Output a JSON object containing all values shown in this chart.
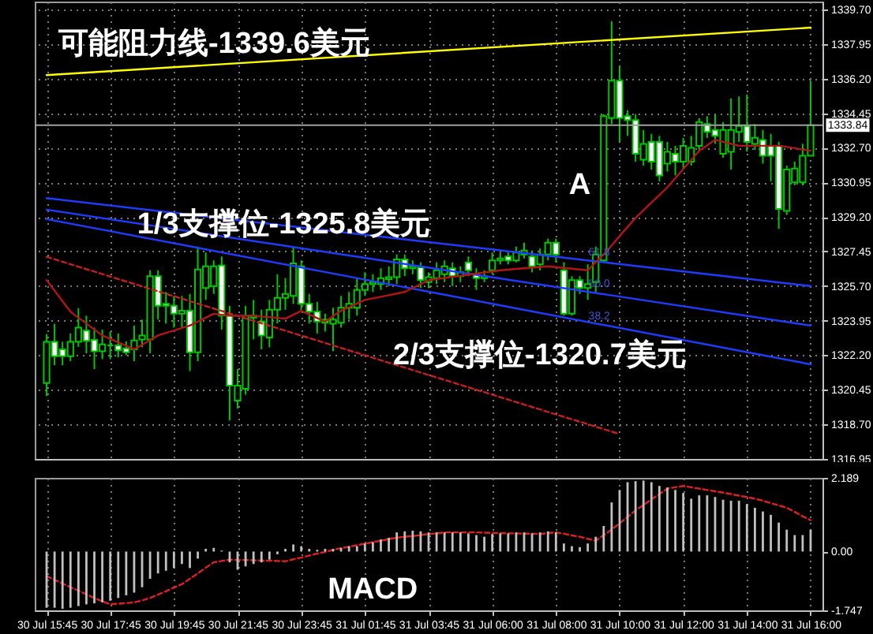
{
  "chart_data": [
    {
      "type": "candlestick",
      "categories": [
        "30 Jul 15:45",
        null,
        null,
        null,
        null,
        null,
        null,
        null,
        "30 Jul 17:45",
        null,
        null,
        null,
        null,
        null,
        null,
        null,
        "30 Jul 19:45",
        null,
        null,
        null,
        null,
        null,
        null,
        null,
        "30 Jul 21:45",
        null,
        null,
        null,
        null,
        null,
        null,
        null,
        "30 Jul 23:45",
        null,
        null,
        null,
        null,
        null,
        null,
        null,
        "31 Jul 01:45",
        null,
        null,
        null,
        null,
        null,
        null,
        null,
        "31 Jul 03:45",
        null,
        null,
        null,
        null,
        null,
        null,
        null,
        "31 Jul 06:00",
        null,
        null,
        null,
        null,
        null,
        null,
        null,
        "31 Jul 08:00",
        null,
        null,
        null,
        null,
        null,
        null,
        null,
        "31 Jul 10:00",
        null,
        null,
        null,
        null,
        null,
        null,
        null,
        "31 Jul 12:00",
        null,
        null,
        null,
        null,
        null,
        null,
        null,
        "31 Jul 14:00",
        null,
        null,
        null,
        null,
        null,
        null,
        null,
        "31 Jul 16:00"
      ],
      "ohlc": [
        [
          1320.79,
          1323.27,
          1320.14,
          1322.88
        ],
        [
          1322.88,
          1323.79,
          1321.7,
          1322.15
        ],
        [
          1322.5,
          1322.88,
          1321.7,
          1322.15
        ],
        [
          1322.15,
          1323.3,
          1321.9,
          1322.88
        ],
        [
          1322.88,
          1324.58,
          1322.62,
          1323.6
        ],
        [
          1323.45,
          1324.2,
          1322.3,
          1322.93
        ],
        [
          1322.98,
          1323.6,
          1321.5,
          1322.4
        ],
        [
          1322.4,
          1323.5,
          1322.0,
          1322.75
        ],
        [
          1322.7,
          1323.4,
          1322.0,
          1322.7
        ],
        [
          1322.7,
          1323.3,
          1322.1,
          1322.45
        ],
        [
          1322.55,
          1322.9,
          1322.2,
          1322.35
        ],
        [
          1322.5,
          1323.7,
          1321.9,
          1322.95
        ],
        [
          1323.0,
          1324.0,
          1322.6,
          1323.2
        ],
        [
          1323.0,
          1326.5,
          1322.3,
          1326.2
        ],
        [
          1326.2,
          1326.5,
          1324.0,
          1324.7
        ],
        [
          1324.8,
          1325.4,
          1323.8,
          1324.7
        ],
        [
          1324.7,
          1325.2,
          1323.6,
          1324.3
        ],
        [
          1324.3,
          1325.2,
          1323.6,
          1324.45
        ],
        [
          1324.45,
          1325.3,
          1321.4,
          1322.35
        ],
        [
          1322.35,
          1327.7,
          1321.9,
          1326.54
        ],
        [
          1325.6,
          1327.4,
          1325.0,
          1326.7
        ],
        [
          1325.7,
          1327.0,
          1325.3,
          1326.7
        ],
        [
          1326.75,
          1327.2,
          1323.5,
          1324.2
        ],
        [
          1324.2,
          1324.7,
          1318.9,
          1320.66
        ],
        [
          1319.9,
          1321.5,
          1319.5,
          1320.66
        ],
        [
          1320.5,
          1324.7,
          1320.2,
          1324.2
        ],
        [
          1324.1,
          1325.0,
          1323.0,
          1324.2
        ],
        [
          1323.9,
          1324.5,
          1322.5,
          1323.2
        ],
        [
          1323.1,
          1325.0,
          1322.6,
          1324.5
        ],
        [
          1324.5,
          1326.3,
          1323.8,
          1325.1
        ],
        [
          1325.1,
          1326.1,
          1324.5,
          1325.3
        ],
        [
          1325.2,
          1327.7,
          1324.8,
          1326.85
        ],
        [
          1326.7,
          1327.0,
          1324.5,
          1324.8
        ],
        [
          1324.8,
          1325.3,
          1323.8,
          1324.4
        ],
        [
          1324.4,
          1324.9,
          1323.3,
          1323.9
        ],
        [
          1324.0,
          1324.3,
          1323.4,
          1323.85
        ],
        [
          1323.8,
          1324.6,
          1322.4,
          1324.0
        ],
        [
          1323.85,
          1325.2,
          1323.6,
          1324.6
        ],
        [
          1324.6,
          1325.4,
          1324.0,
          1324.8
        ],
        [
          1324.6,
          1326.1,
          1324.2,
          1325.5
        ],
        [
          1325.5,
          1326.4,
          1325.2,
          1325.8
        ],
        [
          1325.8,
          1326.3,
          1325.4,
          1325.9
        ],
        [
          1325.8,
          1326.6,
          1325.5,
          1326.1
        ],
        [
          1326.05,
          1326.7,
          1325.7,
          1326.15
        ],
        [
          1326.15,
          1327.3,
          1325.8,
          1327.05
        ],
        [
          1327.05,
          1327.3,
          1326.2,
          1326.6
        ],
        [
          1326.6,
          1327.0,
          1326.3,
          1326.7
        ],
        [
          1326.65,
          1326.9,
          1325.6,
          1326.0
        ],
        [
          1325.9,
          1326.4,
          1325.6,
          1326.15
        ],
        [
          1326.1,
          1326.9,
          1325.8,
          1326.5
        ],
        [
          1326.3,
          1327.0,
          1325.9,
          1326.7
        ],
        [
          1326.6,
          1326.9,
          1325.7,
          1326.2
        ],
        [
          1326.2,
          1326.7,
          1325.9,
          1326.4
        ],
        [
          1326.9,
          1327.2,
          1326.2,
          1326.5
        ],
        [
          1326.3,
          1326.6,
          1325.5,
          1326.1
        ],
        [
          1326.1,
          1326.5,
          1325.9,
          1326.2
        ],
        [
          1326.5,
          1327.4,
          1326.3,
          1327.0
        ],
        [
          1327.0,
          1327.4,
          1326.8,
          1327.1
        ],
        [
          1327.2,
          1327.4,
          1326.8,
          1327.0
        ],
        [
          1327.0,
          1327.7,
          1326.9,
          1327.4
        ],
        [
          1327.3,
          1327.9,
          1327.1,
          1327.5
        ],
        [
          1327.2,
          1327.5,
          1326.4,
          1326.7
        ],
        [
          1326.8,
          1327.6,
          1326.5,
          1327.3
        ],
        [
          1327.3,
          1328.1,
          1327.0,
          1327.9
        ],
        [
          1327.9,
          1328.1,
          1326.9,
          1327.3
        ],
        [
          1326.5,
          1326.9,
          1324.2,
          1324.3
        ],
        [
          1324.3,
          1326.2,
          1324.2,
          1326.0
        ],
        [
          1326.0,
          1326.2,
          1325.3,
          1325.6
        ],
        [
          1325.6,
          1326.8,
          1325.0,
          1325.8
        ],
        [
          1325.9,
          1327.7,
          1325.4,
          1327.3
        ],
        [
          1327.0,
          1334.4,
          1326.9,
          1334.3
        ],
        [
          1334.2,
          1339.1,
          1333.9,
          1336.1
        ],
        [
          1336.1,
          1336.8,
          1333.0,
          1334.2
        ],
        [
          1334.3,
          1334.6,
          1333.3,
          1334.1
        ],
        [
          1334.1,
          1334.4,
          1332.0,
          1332.4
        ],
        [
          1332.1,
          1333.6,
          1331.8,
          1332.9
        ],
        [
          1333.0,
          1333.4,
          1331.6,
          1332.0
        ],
        [
          1333.0,
          1333.3,
          1331.0,
          1331.3
        ],
        [
          1331.9,
          1333.0,
          1331.5,
          1332.5
        ],
        [
          1332.4,
          1332.8,
          1331.3,
          1332.0
        ],
        [
          1332.0,
          1333.2,
          1331.6,
          1332.8
        ],
        [
          1332.0,
          1333.3,
          1331.8,
          1332.7
        ],
        [
          1332.8,
          1334.2,
          1332.5,
          1334.0
        ],
        [
          1333.9,
          1334.3,
          1333.2,
          1333.5
        ],
        [
          1333.6,
          1334.4,
          1332.9,
          1333.3
        ],
        [
          1332.4,
          1334.0,
          1332.2,
          1333.6
        ],
        [
          1332.5,
          1335.2,
          1331.6,
          1333.6
        ],
        [
          1333.5,
          1335.3,
          1333.0,
          1333.8
        ],
        [
          1333.8,
          1335.4,
          1332.5,
          1333.0
        ],
        [
          1332.9,
          1333.9,
          1332.6,
          1333.2
        ],
        [
          1333.1,
          1333.6,
          1331.9,
          1332.3
        ],
        [
          1332.8,
          1333.4,
          1331.0,
          1332.3
        ],
        [
          1332.8,
          1333.0,
          1328.6,
          1329.6
        ],
        [
          1329.5,
          1331.8,
          1329.3,
          1331.6
        ],
        [
          1330.95,
          1332.0,
          1330.8,
          1331.65
        ],
        [
          1330.95,
          1332.9,
          1330.8,
          1332.3
        ],
        [
          1332.3,
          1336.1,
          1332.3,
          1333.84
        ]
      ],
      "series": [
        {
          "type": "line",
          "color": "#ffff00",
          "x": [
            "30 Jul 15:45",
            "31 Jul 16:00"
          ],
          "values": [
            1336.38,
            1338.78
          ]
        },
        {
          "type": "line",
          "color": "#1e3cff",
          "x": [
            "30 Jul 15:45",
            "31 Jul 16:00"
          ],
          "values": [
            1330.15,
            1325.7
          ]
        },
        {
          "type": "line",
          "color": "#1e3cff",
          "x": [
            "30 Jul 15:45",
            "31 Jul 16:00"
          ],
          "values": [
            1329.57,
            1323.7
          ]
        },
        {
          "type": "line",
          "color": "#1e3cff",
          "x": [
            "30 Jul 15:45",
            "31 Jul 16:00"
          ],
          "values": [
            1329.09,
            1321.74
          ]
        },
        {
          "type": "line",
          "color": "#c81e1e",
          "line_style": "dashed",
          "x": [
            "30 Jul 15:45",
            "31 Jul 10:00"
          ],
          "values": [
            1327.18,
            1318.21
          ]
        },
        {
          "type": "line",
          "color": "#b41414",
          "values": [
            1326.0,
            1325.47,
            1324.93,
            1324.4,
            1324.1,
            1323.8,
            1323.5,
            1323.2,
            1323.03,
            1322.85,
            1322.68,
            1322.5,
            1322.73,
            1322.97,
            1323.2,
            1323.33,
            1323.45,
            1323.58,
            1323.7,
            1323.9,
            1324.1,
            1324.3,
            1324.25,
            1324.2,
            1324.2,
            1324.2,
            1324.2,
            1324.16,
            1324.13,
            1324.09,
            1324.05,
            1324.25,
            1324.45,
            1324.27,
            1324.08,
            1323.9,
            1324.18,
            1324.45,
            1324.63,
            1324.82,
            1325.0,
            1325.08,
            1325.16,
            1325.24,
            1325.32,
            1325.4,
            1325.6,
            1325.8,
            1326.0,
            1326.06,
            1326.11,
            1326.17,
            1326.22,
            1326.28,
            1326.33,
            1326.39,
            1326.44,
            1326.5,
            1326.53,
            1326.57,
            1326.6,
            1326.63,
            1326.67,
            1326.7,
            1326.66,
            1326.62,
            1326.58,
            1326.54,
            1326.5,
            1326.9,
            1327.3,
            1327.76,
            1328.23,
            1328.69,
            1329.15,
            1329.54,
            1329.93,
            1330.31,
            1330.7,
            1331.16,
            1331.63,
            1332.09,
            1332.55,
            1332.83,
            1333.1,
            1333.0,
            1332.9,
            1332.8,
            1332.8,
            1332.8,
            1332.8,
            1332.8,
            1332.8,
            1332.74,
            1332.68,
            1332.61,
            1332.55
          ]
        }
      ],
      "ylim": [
        1316.95,
        1340.1
      ],
      "yticks": [
        {
          "value": 1316.95,
          "label": "1316.95"
        },
        {
          "value": 1318.7,
          "label": "1318.70"
        },
        {
          "value": 1320.45,
          "label": "1320.45"
        },
        {
          "value": 1322.2,
          "label": "1322.20"
        },
        {
          "value": 1323.95,
          "label": "1323.95"
        },
        {
          "value": 1325.7,
          "label": "1325.70"
        },
        {
          "value": 1327.45,
          "label": "1327.45"
        },
        {
          "value": 1329.2,
          "label": "1329.20"
        },
        {
          "value": 1330.95,
          "label": "1330.95"
        },
        {
          "value": 1332.7,
          "label": "1332.70"
        },
        {
          "value": 1334.45,
          "label": "1334.45"
        },
        {
          "value": 1336.2,
          "label": "1336.20"
        },
        {
          "value": 1337.95,
          "label": "1337.95"
        },
        {
          "value": 1339.7,
          "label": "1339.70"
        }
      ],
      "tick_labels": "y",
      "grid": true,
      "ref_lines": [
        {
          "axis": "y",
          "value": 1333.84,
          "label": "1333.84",
          "color": "#a0a0a0"
        }
      ],
      "annotations": [
        "可能阻力线-1339.6美元",
        "1/3支撑位-1325.8美元",
        "2/3支撑位-1320.7美元",
        "A",
        "61.8",
        "50.0",
        "38.2"
      ]
    },
    {
      "type": "bar",
      "categories": [
        "30 Jul 15:45",
        null,
        null,
        null,
        null,
        null,
        null,
        null,
        "30 Jul 17:45",
        null,
        null,
        null,
        null,
        null,
        null,
        null,
        "30 Jul 19:45",
        null,
        null,
        null,
        null,
        null,
        null,
        null,
        "30 Jul 21:45",
        null,
        null,
        null,
        null,
        null,
        null,
        null,
        "30 Jul 23:45",
        null,
        null,
        null,
        null,
        null,
        null,
        null,
        "31 Jul 01:45",
        null,
        null,
        null,
        null,
        null,
        null,
        null,
        "31 Jul 03:45",
        null,
        null,
        null,
        null,
        null,
        null,
        null,
        "31 Jul 06:00",
        null,
        null,
        null,
        null,
        null,
        null,
        null,
        "31 Jul 08:00",
        null,
        null,
        null,
        null,
        null,
        null,
        null,
        "31 Jul 10:00",
        null,
        null,
        null,
        null,
        null,
        null,
        null,
        "31 Jul 12:00",
        null,
        null,
        null,
        null,
        null,
        null,
        null,
        "31 Jul 14:00",
        null,
        null,
        null,
        null,
        null,
        null,
        null,
        "31 Jul 16:00"
      ],
      "series": [
        {
          "color": "#c0c0c0",
          "values": [
            -1.67,
            -1.67,
            -1.7,
            -1.67,
            -1.62,
            -1.57,
            -1.54,
            -1.51,
            -1.46,
            -1.38,
            -1.3,
            -1.22,
            -1.06,
            -0.81,
            -0.65,
            -0.57,
            -0.49,
            -0.37,
            -0.49,
            -0.21,
            0.08,
            0.11,
            0.03,
            -0.32,
            -0.54,
            -0.44,
            -0.37,
            -0.32,
            -0.24,
            -0.08,
            0.08,
            0.21,
            0.16,
            0.08,
            0.05,
            0.08,
            0.08,
            0.11,
            0.16,
            0.16,
            0.24,
            0.28,
            0.36,
            0.41,
            0.57,
            0.6,
            0.62,
            0.6,
            0.57,
            0.57,
            0.57,
            0.57,
            0.57,
            0.54,
            0.49,
            0.44,
            0.52,
            0.54,
            0.54,
            0.57,
            0.57,
            0.54,
            0.57,
            0.6,
            0.57,
            0.24,
            0.16,
            0.13,
            0.24,
            0.44,
            0.76,
            1.46,
            1.83,
            2.06,
            2.09,
            2.11,
            2.06,
            1.95,
            1.9,
            1.83,
            1.74,
            1.57,
            1.67,
            1.67,
            1.62,
            1.54,
            1.51,
            1.51,
            1.41,
            1.3,
            1.19,
            1.09,
            0.86,
            0.65,
            0.49,
            0.49,
            0.65
          ]
        },
        {
          "type": "line",
          "color": "#e02020",
          "line_style": "dashed",
          "values": [
            -0.73,
            -0.84,
            -0.95,
            -1.06,
            -1.16,
            -1.27,
            -1.38,
            -1.48,
            -1.57,
            -1.55,
            -1.53,
            -1.51,
            -1.45,
            -1.38,
            -1.28,
            -1.18,
            -1.07,
            -0.97,
            -0.81,
            -0.65,
            -0.48,
            -0.32,
            -0.28,
            -0.24,
            -0.25,
            -0.25,
            -0.26,
            -0.27,
            -0.27,
            -0.28,
            -0.29,
            -0.23,
            -0.18,
            -0.12,
            -0.06,
            -0.01,
            0.05,
            0.1,
            0.14,
            0.19,
            0.23,
            0.28,
            0.32,
            0.37,
            0.41,
            0.44,
            0.46,
            0.49,
            0.52,
            0.54,
            0.57,
            0.57,
            0.57,
            0.57,
            0.57,
            0.56,
            0.55,
            0.55,
            0.54,
            0.54,
            0.53,
            0.53,
            0.52,
            0.55,
            0.57,
            0.53,
            0.48,
            0.44,
            0.38,
            0.32,
            0.49,
            0.65,
            0.84,
            1.03,
            1.22,
            1.38,
            1.55,
            1.71,
            1.87,
            1.91,
            1.95,
            1.91,
            1.87,
            1.83,
            1.79,
            1.75,
            1.71,
            1.66,
            1.62,
            1.57,
            1.51,
            1.44,
            1.37,
            1.3,
            1.18,
            1.05,
            0.93
          ]
        }
      ],
      "ylim": [
        -1.747,
        2.189
      ],
      "yticks": [
        -1.747,
        {
          "value": 0,
          "label": "0.00"
        },
        2.189
      ],
      "grid": "x",
      "annotations": [
        "MACD"
      ]
    }
  ]
}
